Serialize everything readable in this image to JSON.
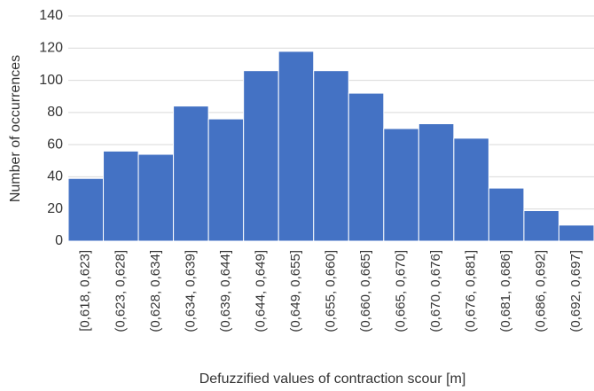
{
  "chart_data": {
    "type": "bar",
    "x_label": "Defuzzified values of contraction scour [m]",
    "y_label": "Number of occurrences",
    "categories": [
      "[0,618, 0,623]",
      "(0,623, 0,628]",
      "(0,628, 0,634]",
      "(0,634, 0,639]",
      "(0,639, 0,644]",
      "(0,644, 0,649]",
      "(0,649, 0,655]",
      "(0,655, 0,660]",
      "(0,660, 0,665]",
      "(0,665, 0,670]",
      "(0,670, 0,676]",
      "(0,676, 0,681]",
      "(0,681, 0,686]",
      "(0,686, 0,692]",
      "(0,692, 0,697]"
    ],
    "values": [
      39,
      56,
      54,
      84,
      76,
      106,
      118,
      106,
      92,
      70,
      73,
      64,
      33,
      19,
      10
    ],
    "color": "#4472c4",
    "ylim": [
      0,
      140
    ],
    "yticks": [
      0,
      20,
      40,
      60,
      80,
      100,
      120,
      140
    ],
    "grid": true
  }
}
